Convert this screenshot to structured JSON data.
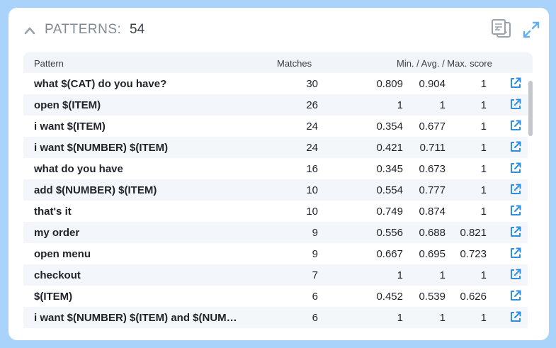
{
  "header": {
    "title": "PATTERNS:",
    "count": "54",
    "icons": {
      "collapse": "chevron-up-icon",
      "copy": "copy-icon",
      "expand": "expand-icon"
    }
  },
  "table": {
    "columns": {
      "pattern": "Pattern",
      "matches": "Matches",
      "score": "Min. / Avg. / Max. score"
    },
    "rows": [
      {
        "pattern": "what $(CAT) do you have?",
        "matches": "30",
        "min": "0.809",
        "avg": "0.904",
        "max": "1"
      },
      {
        "pattern": "open $(ITEM)",
        "matches": "26",
        "min": "1",
        "avg": "1",
        "max": "1"
      },
      {
        "pattern": "i want $(ITEM)",
        "matches": "24",
        "min": "0.354",
        "avg": "0.677",
        "max": "1"
      },
      {
        "pattern": "i want $(NUMBER) $(ITEM)",
        "matches": "24",
        "min": "0.421",
        "avg": "0.711",
        "max": "1"
      },
      {
        "pattern": "what do you have",
        "matches": "16",
        "min": "0.345",
        "avg": "0.673",
        "max": "1"
      },
      {
        "pattern": "add $(NUMBER) $(ITEM)",
        "matches": "10",
        "min": "0.554",
        "avg": "0.777",
        "max": "1"
      },
      {
        "pattern": "that's it",
        "matches": "10",
        "min": "0.749",
        "avg": "0.874",
        "max": "1"
      },
      {
        "pattern": "my order",
        "matches": "9",
        "min": "0.556",
        "avg": "0.688",
        "max": "0.821"
      },
      {
        "pattern": "open menu",
        "matches": "9",
        "min": "0.667",
        "avg": "0.695",
        "max": "0.723"
      },
      {
        "pattern": "checkout",
        "matches": "7",
        "min": "1",
        "avg": "1",
        "max": "1"
      },
      {
        "pattern": "$(ITEM)",
        "matches": "6",
        "min": "0.452",
        "avg": "0.539",
        "max": "0.626"
      },
      {
        "pattern": "i want $(NUMBER) $(ITEM) and $(NUM…",
        "matches": "6",
        "min": "1",
        "avg": "1",
        "max": "1"
      }
    ],
    "row_link_icon": "external-link-icon"
  },
  "colors": {
    "background": "#a9d3fb",
    "card": "#ffffff",
    "header_bg": "#f1f5fa",
    "row_alt_bg": "#f3f7fb",
    "accent": "#2f8fe0",
    "muted_icon": "#9aa3ad"
  }
}
